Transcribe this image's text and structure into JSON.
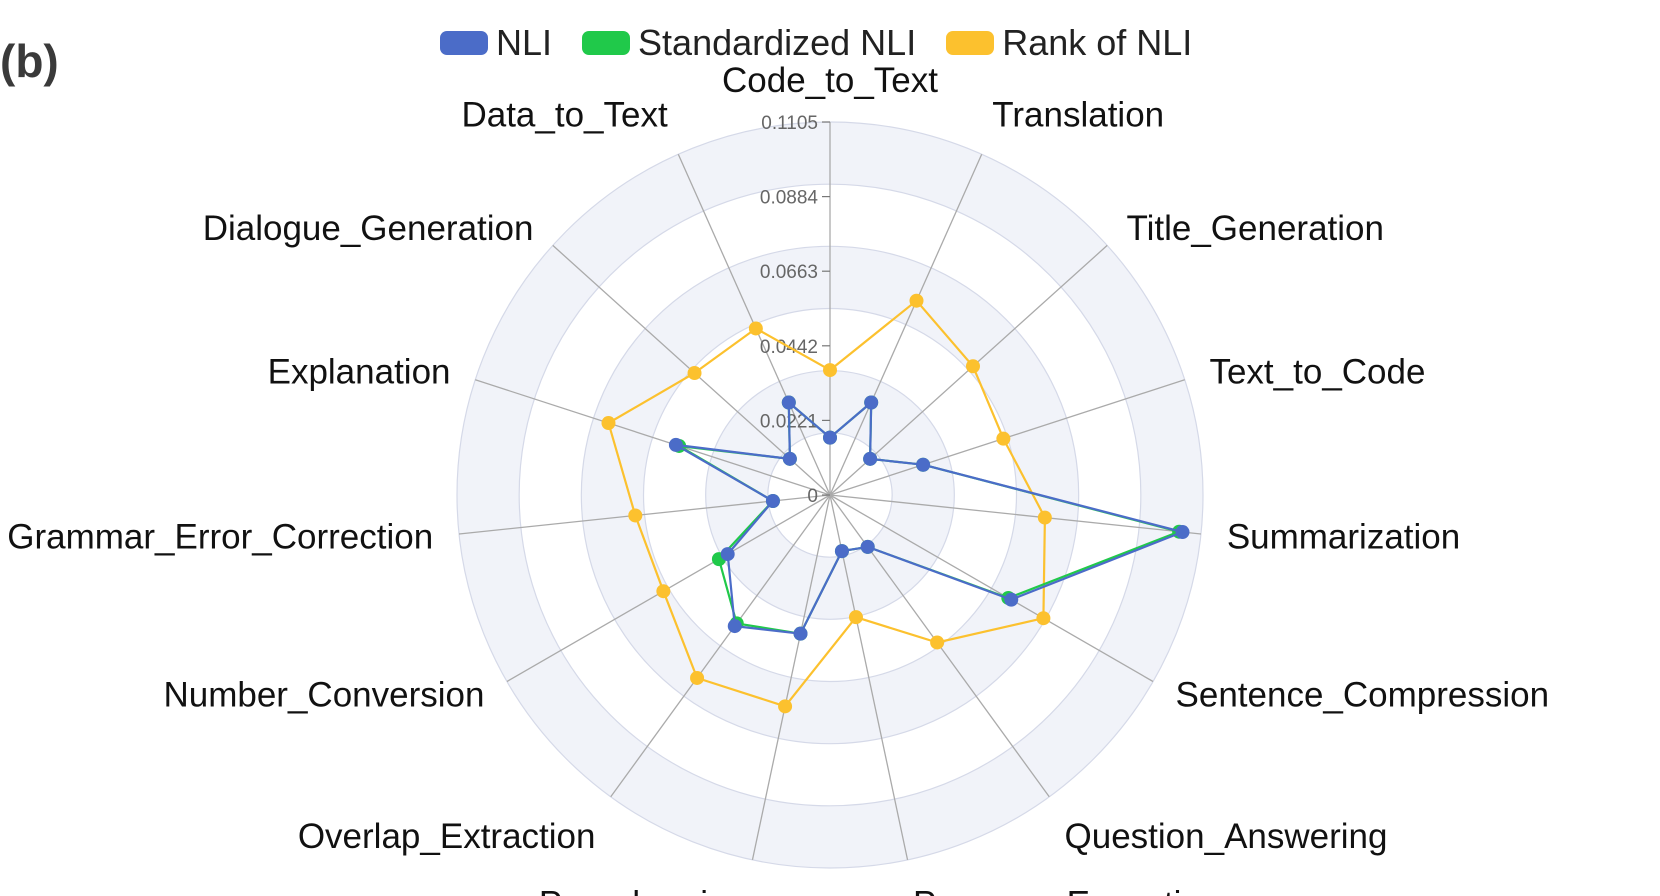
{
  "panel_label": "(b)",
  "colors": {
    "nli": "#4b6cc8",
    "standardized": "#20c94a",
    "rank": "#fcc12e",
    "band": "#f1f3f9",
    "grid": "#d5d9e8",
    "axis": "#aaaaaa"
  },
  "chart_data": {
    "type": "radar",
    "title": "",
    "categories": [
      "Code_to_Text",
      "Translation",
      "Title_Generation",
      "Text_to_Code",
      "Summarization",
      "Sentence_Compression",
      "Question_Answering",
      "Program_Execution",
      "Paraphrasing",
      "Overlap_Extraction",
      "Number_Conversion",
      "Grammar_Error_Correction",
      "Explanation",
      "Dialogue_Generation",
      "Data_to_Text"
    ],
    "radial_ticks": [
      "0",
      "0.0221",
      "0.0442",
      "0.0663",
      "0.0884",
      "0.1105"
    ],
    "rmax": 0.1105,
    "grid": true,
    "legend_position": "top",
    "series": [
      {
        "name": "NLI",
        "color": "#4b6cc8",
        "values": [
          0.017,
          0.03,
          0.016,
          0.029,
          0.105,
          0.062,
          0.019,
          0.017,
          0.042,
          0.048,
          0.035,
          0.017,
          0.048,
          0.016,
          0.03
        ]
      },
      {
        "name": "Standardized NLI",
        "color": "#20c94a",
        "values": [
          0.017,
          0.03,
          0.016,
          0.029,
          0.104,
          0.061,
          0.019,
          0.017,
          0.042,
          0.047,
          0.038,
          0.017,
          0.047,
          0.016,
          0.03
        ]
      },
      {
        "name": "Rank of NLI",
        "color": "#fcc12e",
        "values": [
          0.037,
          0.063,
          0.057,
          0.054,
          0.064,
          0.073,
          0.054,
          0.037,
          0.064,
          0.067,
          0.057,
          0.058,
          0.069,
          0.054,
          0.054
        ]
      }
    ]
  }
}
